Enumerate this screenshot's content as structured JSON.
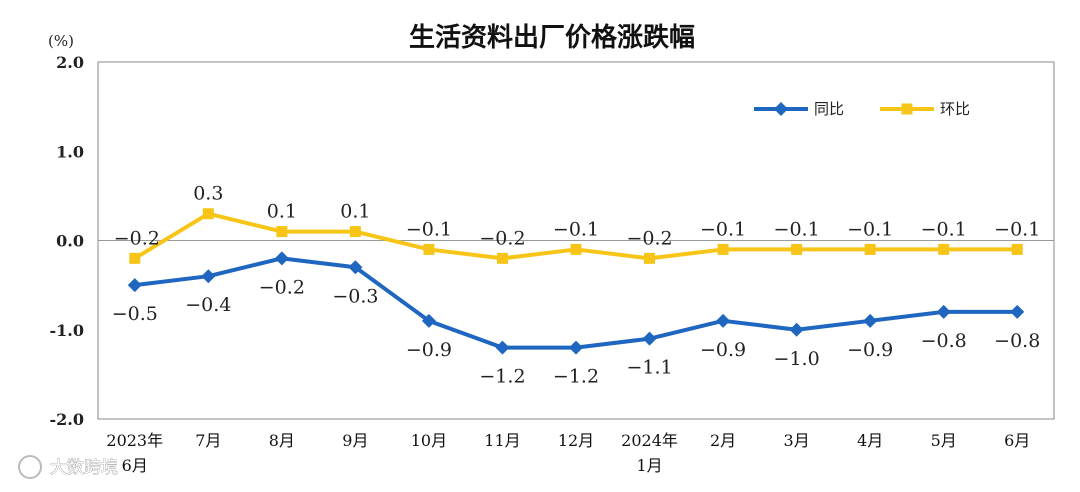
{
  "chart_data": {
    "type": "line",
    "title": "生活资料出厂价格涨跌幅",
    "unit_label": "(%)",
    "ylim": [
      -2.0,
      2.0
    ],
    "yticks": [
      "2.0",
      "1.0",
      "0.0",
      "-1.0",
      "-2.0"
    ],
    "categories": [
      [
        "2023年",
        "6月"
      ],
      [
        "7月"
      ],
      [
        "8月"
      ],
      [
        "9月"
      ],
      [
        "10月"
      ],
      [
        "11月"
      ],
      [
        "12月"
      ],
      [
        "2024年",
        "1月"
      ],
      [
        "2月"
      ],
      [
        "3月"
      ],
      [
        "4月"
      ],
      [
        "5月"
      ],
      [
        "6月"
      ]
    ],
    "series": [
      {
        "name": "同比",
        "color": "#1f66c1",
        "marker": "diamond",
        "values": [
          -0.5,
          -0.4,
          -0.2,
          -0.3,
          -0.9,
          -1.2,
          -1.2,
          -1.1,
          -0.9,
          -1.0,
          -0.9,
          -0.8,
          -0.8
        ],
        "labels": [
          "-0.5",
          "-0.4",
          "-0.2",
          "-0.3",
          "-0.9",
          "-1.2",
          "-1.2",
          "-1.1",
          "-0.9",
          "-1.0",
          "-0.9",
          "-0.8",
          "-0.8"
        ]
      },
      {
        "name": "环比",
        "color": "#f7c518",
        "marker": "square",
        "values": [
          -0.2,
          0.3,
          0.1,
          0.1,
          -0.1,
          -0.2,
          -0.1,
          -0.2,
          -0.1,
          -0.1,
          -0.1,
          -0.1,
          -0.1
        ],
        "labels": [
          "-0.2",
          "0.3",
          "0.1",
          "0.1",
          "-0.1",
          "-0.2",
          "-0.1",
          "-0.2",
          "-0.1",
          "-0.1",
          "-0.1",
          "-0.1",
          "-0.1"
        ]
      }
    ],
    "legend_position": "top-right"
  },
  "watermark": "大数跨境"
}
